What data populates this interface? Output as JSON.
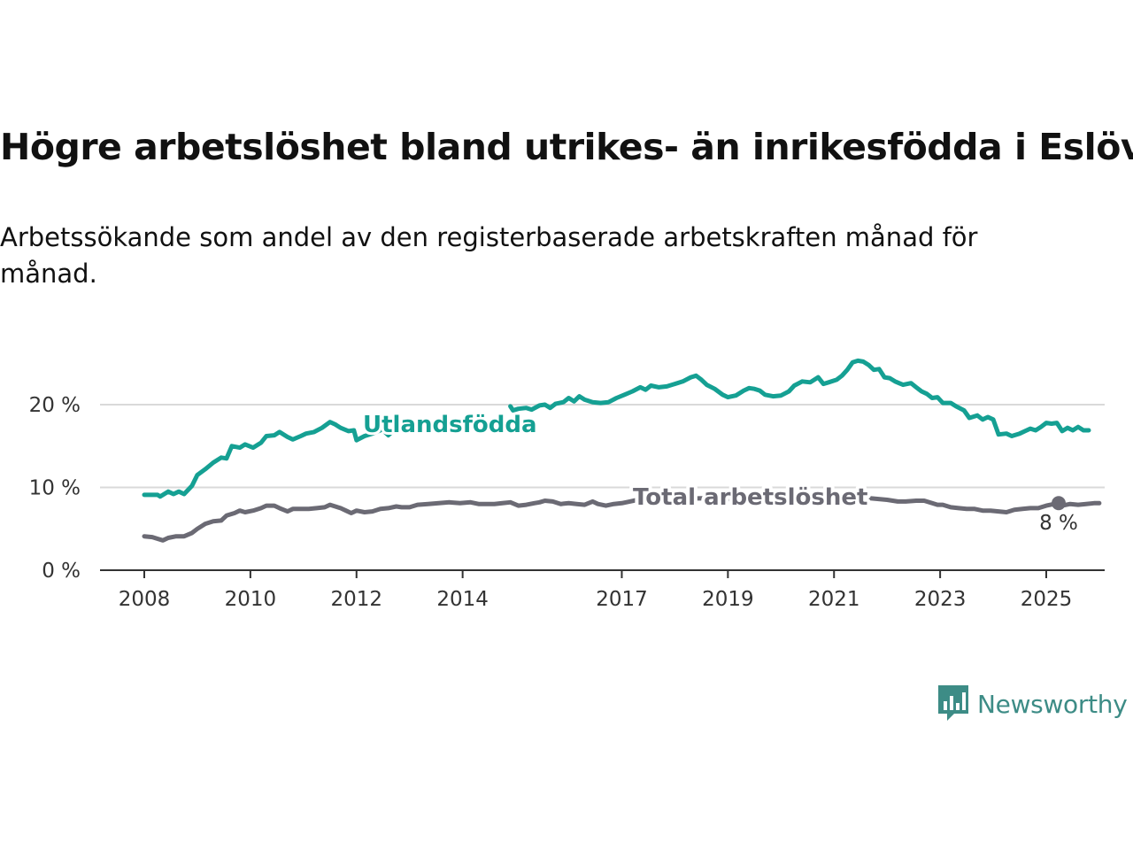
{
  "title": "Högre arbetslöshet bland utrikes- än inrikesfödda i Eslöv",
  "subtitle": "Arbetssökande som andel av den registerbaserade arbetskraften månad för månad.",
  "brand": {
    "name": "Newsworthy",
    "icon": "newsworthy-chart-bubble-icon"
  },
  "colors": {
    "utlandsfodda": "#15a093",
    "total": "#6b6a74",
    "grid": "#d9d9d9",
    "axis": "#333333",
    "brand": "#3d8c86"
  },
  "chart_data": {
    "type": "line",
    "x_unit": "year",
    "xlim": [
      2007.7,
      2026.0
    ],
    "ylim": [
      0,
      22.5
    ],
    "y_ticks": [
      0,
      10,
      20
    ],
    "y_tick_labels": [
      "0 %",
      "10 %",
      "20 %"
    ],
    "x_ticks": [
      2008,
      2010,
      2012,
      2014,
      2017,
      2019,
      2021,
      2023,
      2025
    ],
    "x_tick_labels": [
      "2008",
      "2010",
      "2012",
      "2014",
      "2017",
      "2019",
      "2021",
      "2023",
      "2025"
    ],
    "grid": "horizontal",
    "end_label": "8 %",
    "series": [
      {
        "name": "Utlandsfödda",
        "key": "utlandsfodda",
        "segments": [
          [
            [
              2008.0,
              9.1
            ],
            [
              2008.25,
              9.1
            ],
            [
              2008.3,
              8.9
            ],
            [
              2008.45,
              9.5
            ],
            [
              2008.55,
              9.2
            ],
            [
              2008.65,
              9.5
            ],
            [
              2008.75,
              9.2
            ],
            [
              2008.9,
              10.2
            ],
            [
              2009.0,
              11.5
            ],
            [
              2009.15,
              12.2
            ],
            [
              2009.3,
              13.0
            ],
            [
              2009.45,
              13.6
            ],
            [
              2009.55,
              13.5
            ],
            [
              2009.65,
              15.0
            ],
            [
              2009.8,
              14.8
            ],
            [
              2009.9,
              15.2
            ],
            [
              2010.05,
              14.8
            ],
            [
              2010.2,
              15.4
            ],
            [
              2010.3,
              16.2
            ],
            [
              2010.45,
              16.3
            ],
            [
              2010.55,
              16.7
            ],
            [
              2010.7,
              16.1
            ],
            [
              2010.8,
              15.8
            ],
            [
              2010.95,
              16.2
            ],
            [
              2011.05,
              16.5
            ],
            [
              2011.2,
              16.7
            ],
            [
              2011.35,
              17.2
            ],
            [
              2011.5,
              17.9
            ],
            [
              2011.6,
              17.6
            ],
            [
              2011.7,
              17.2
            ],
            [
              2011.85,
              16.8
            ],
            [
              2011.95,
              16.9
            ],
            [
              2012.0,
              15.7
            ],
            [
              2012.15,
              16.2
            ],
            [
              2012.3,
              16.5
            ],
            [
              2012.45,
              16.9
            ],
            [
              2012.5,
              17.2
            ],
            [
              2012.55,
              16.6
            ],
            [
              2012.6,
              16.3
            ],
            [
              2012.65,
              16.6
            ]
          ]
        ],
        "segments_note": "",
        "segments2": [
          [
            [
              2014.9,
              19.8
            ],
            [
              2014.95,
              19.3
            ],
            [
              2015.05,
              19.5
            ],
            [
              2015.2,
              19.6
            ],
            [
              2015.3,
              19.4
            ],
            [
              2015.45,
              19.9
            ],
            [
              2015.55,
              20.0
            ],
            [
              2015.65,
              19.6
            ],
            [
              2015.75,
              20.1
            ],
            [
              2015.9,
              20.3
            ],
            [
              2016.0,
              20.8
            ],
            [
              2016.1,
              20.4
            ],
            [
              2016.2,
              21.0
            ],
            [
              2016.3,
              20.6
            ],
            [
              2016.45,
              20.3
            ],
            [
              2016.6,
              20.2
            ],
            [
              2016.75,
              20.3
            ],
            [
              2016.9,
              20.8
            ],
            [
              2017.05,
              21.2
            ],
            [
              2017.2,
              21.6
            ],
            [
              2017.35,
              22.1
            ],
            [
              2017.45,
              21.8
            ],
            [
              2017.55,
              22.3
            ],
            [
              2017.7,
              22.1
            ],
            [
              2017.85,
              22.2
            ],
            [
              2018.0,
              22.5
            ],
            [
              2018.15,
              22.8
            ],
            [
              2018.3,
              23.3
            ],
            [
              2018.4,
              23.5
            ],
            [
              2018.5,
              23.0
            ],
            [
              2018.6,
              22.4
            ],
            [
              2018.75,
              21.9
            ],
            [
              2018.9,
              21.2
            ],
            [
              2019.0,
              20.9
            ],
            [
              2019.15,
              21.1
            ],
            [
              2019.3,
              21.7
            ],
            [
              2019.4,
              22.0
            ],
            [
              2019.5,
              21.9
            ],
            [
              2019.6,
              21.7
            ],
            [
              2019.7,
              21.2
            ],
            [
              2019.85,
              21.0
            ],
            [
              2020.0,
              21.1
            ],
            [
              2020.15,
              21.6
            ],
            [
              2020.25,
              22.3
            ],
            [
              2020.4,
              22.8
            ],
            [
              2020.55,
              22.7
            ],
            [
              2020.7,
              23.3
            ],
            [
              2020.8,
              22.5
            ],
            [
              2020.9,
              22.7
            ],
            [
              2021.05,
              23.0
            ],
            [
              2021.15,
              23.5
            ],
            [
              2021.25,
              24.2
            ],
            [
              2021.35,
              25.1
            ],
            [
              2021.45,
              25.3
            ],
            [
              2021.55,
              25.2
            ],
            [
              2021.65,
              24.8
            ],
            [
              2021.75,
              24.2
            ],
            [
              2021.85,
              24.3
            ],
            [
              2021.95,
              23.3
            ],
            [
              2022.05,
              23.2
            ],
            [
              2022.15,
              22.8
            ],
            [
              2022.3,
              22.4
            ],
            [
              2022.45,
              22.6
            ],
            [
              2022.55,
              22.1
            ],
            [
              2022.65,
              21.6
            ],
            [
              2022.75,
              21.3
            ],
            [
              2022.85,
              20.8
            ],
            [
              2022.95,
              20.9
            ],
            [
              2023.05,
              20.2
            ],
            [
              2023.2,
              20.2
            ],
            [
              2023.3,
              19.8
            ],
            [
              2023.45,
              19.3
            ],
            [
              2023.55,
              18.4
            ],
            [
              2023.7,
              18.7
            ],
            [
              2023.8,
              18.2
            ],
            [
              2023.9,
              18.5
            ],
            [
              2024.0,
              18.2
            ],
            [
              2024.1,
              16.4
            ],
            [
              2024.25,
              16.5
            ],
            [
              2024.35,
              16.2
            ],
            [
              2024.5,
              16.5
            ],
            [
              2024.6,
              16.8
            ],
            [
              2024.7,
              17.1
            ],
            [
              2024.8,
              16.9
            ],
            [
              2024.9,
              17.3
            ],
            [
              2025.0,
              17.8
            ],
            [
              2025.1,
              17.7
            ],
            [
              2025.2,
              17.8
            ],
            [
              2025.3,
              16.8
            ],
            [
              2025.4,
              17.2
            ],
            [
              2025.5,
              16.9
            ],
            [
              2025.6,
              17.3
            ],
            [
              2025.7,
              16.9
            ],
            [
              2025.8,
              16.9
            ]
          ]
        ]
      },
      {
        "name": "Total arbetslöshet",
        "key": "total",
        "segments": [
          [
            [
              2008.0,
              4.1
            ],
            [
              2008.15,
              4.0
            ],
            [
              2008.25,
              3.8
            ],
            [
              2008.35,
              3.6
            ],
            [
              2008.45,
              3.9
            ],
            [
              2008.6,
              4.1
            ],
            [
              2008.75,
              4.1
            ],
            [
              2008.9,
              4.5
            ],
            [
              2009.0,
              5.0
            ],
            [
              2009.15,
              5.6
            ],
            [
              2009.3,
              5.9
            ],
            [
              2009.45,
              6.0
            ],
            [
              2009.55,
              6.6
            ],
            [
              2009.7,
              6.9
            ],
            [
              2009.8,
              7.2
            ],
            [
              2009.9,
              7.0
            ],
            [
              2010.05,
              7.2
            ],
            [
              2010.2,
              7.5
            ],
            [
              2010.3,
              7.8
            ],
            [
              2010.45,
              7.8
            ],
            [
              2010.55,
              7.5
            ],
            [
              2010.7,
              7.1
            ],
            [
              2010.8,
              7.4
            ],
            [
              2010.95,
              7.4
            ],
            [
              2011.1,
              7.4
            ],
            [
              2011.25,
              7.5
            ],
            [
              2011.4,
              7.6
            ],
            [
              2011.5,
              7.9
            ],
            [
              2011.6,
              7.7
            ],
            [
              2011.7,
              7.5
            ],
            [
              2011.8,
              7.2
            ],
            [
              2011.9,
              6.9
            ],
            [
              2012.0,
              7.2
            ],
            [
              2012.15,
              7.0
            ],
            [
              2012.3,
              7.1
            ],
            [
              2012.45,
              7.4
            ],
            [
              2012.6,
              7.5
            ],
            [
              2012.75,
              7.7
            ],
            [
              2012.85,
              7.6
            ],
            [
              2013.0,
              7.6
            ],
            [
              2013.15,
              7.9
            ],
            [
              2013.35,
              8.0
            ],
            [
              2013.55,
              8.1
            ],
            [
              2013.75,
              8.2
            ],
            [
              2013.95,
              8.1
            ],
            [
              2014.15,
              8.2
            ],
            [
              2014.3,
              8.0
            ],
            [
              2014.45,
              8.0
            ],
            [
              2014.6,
              8.0
            ],
            [
              2014.75,
              8.1
            ],
            [
              2014.9,
              8.2
            ],
            [
              2015.05,
              7.8
            ],
            [
              2015.2,
              7.9
            ],
            [
              2015.35,
              8.1
            ],
            [
              2015.45,
              8.2
            ],
            [
              2015.55,
              8.4
            ],
            [
              2015.7,
              8.3
            ],
            [
              2015.85,
              8.0
            ],
            [
              2016.0,
              8.1
            ],
            [
              2016.15,
              8.0
            ],
            [
              2016.3,
              7.9
            ],
            [
              2016.45,
              8.3
            ],
            [
              2016.55,
              8.0
            ],
            [
              2016.7,
              7.8
            ],
            [
              2016.85,
              8.0
            ],
            [
              2017.0,
              8.1
            ],
            [
              2017.15,
              8.3
            ],
            [
              2017.3,
              8.5
            ],
            [
              2017.45,
              8.6
            ],
            [
              2017.6,
              8.5
            ],
            [
              2017.75,
              8.5
            ],
            [
              2018.0,
              8.6
            ],
            [
              2018.5,
              8.7
            ],
            [
              2019.0,
              8.6
            ],
            [
              2019.5,
              8.6
            ],
            [
              2020.0,
              8.8
            ],
            [
              2020.5,
              8.9
            ],
            [
              2021.0,
              8.9
            ],
            [
              2021.5,
              8.8
            ],
            [
              2022.0,
              8.5
            ],
            [
              2022.2,
              8.3
            ],
            [
              2022.35,
              8.3
            ],
            [
              2022.55,
              8.4
            ],
            [
              2022.7,
              8.4
            ],
            [
              2022.85,
              8.1
            ],
            [
              2022.95,
              7.9
            ],
            [
              2023.05,
              7.9
            ],
            [
              2023.2,
              7.6
            ],
            [
              2023.35,
              7.5
            ],
            [
              2023.5,
              7.4
            ],
            [
              2023.65,
              7.4
            ],
            [
              2023.8,
              7.2
            ],
            [
              2023.95,
              7.2
            ],
            [
              2024.1,
              7.1
            ],
            [
              2024.25,
              7.0
            ],
            [
              2024.4,
              7.3
            ],
            [
              2024.55,
              7.4
            ],
            [
              2024.7,
              7.5
            ],
            [
              2024.85,
              7.5
            ],
            [
              2025.0,
              7.8
            ],
            [
              2025.15,
              8.0
            ],
            [
              2025.3,
              7.8
            ],
            [
              2025.45,
              8.0
            ],
            [
              2025.6,
              7.9
            ],
            [
              2025.75,
              8.0
            ],
            [
              2025.9,
              8.1
            ],
            [
              2026.0,
              8.1
            ]
          ]
        ]
      }
    ]
  }
}
